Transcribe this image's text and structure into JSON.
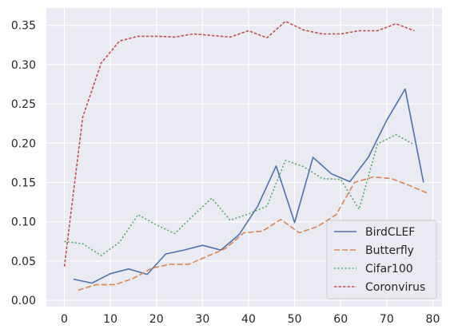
{
  "chart_data": {
    "type": "line",
    "title": "",
    "xlabel": "",
    "ylabel": "",
    "xlim": [
      -3.9,
      82.0
    ],
    "ylim": [
      -0.008,
      0.372
    ],
    "xticks": [
      0,
      10,
      20,
      30,
      40,
      50,
      60,
      70,
      80
    ],
    "xtick_labels": [
      "0",
      "10",
      "20",
      "30",
      "40",
      "50",
      "60",
      "70",
      "80"
    ],
    "yticks": [
      0.0,
      0.05,
      0.1,
      0.15,
      0.2,
      0.25,
      0.3,
      0.35
    ],
    "ytick_labels": [
      "0.00",
      "0.05",
      "0.10",
      "0.15",
      "0.20",
      "0.25",
      "0.30",
      "0.35"
    ],
    "grid": true,
    "background_color": "#eaeaf2",
    "legend_position": "lower right",
    "series": [
      {
        "name": "BirdCLEF",
        "color": "#4c72b0",
        "dash": "solid",
        "x": [
          2,
          6,
          10,
          14,
          18,
          22,
          26,
          30,
          34,
          38,
          42,
          46,
          50,
          54,
          58,
          62,
          66,
          70,
          74,
          78
        ],
        "y": [
          0.027,
          0.022,
          0.034,
          0.04,
          0.033,
          0.059,
          0.064,
          0.07,
          0.064,
          0.084,
          0.12,
          0.171,
          0.099,
          0.182,
          0.161,
          0.151,
          0.182,
          0.229,
          0.269,
          0.15
        ]
      },
      {
        "name": "Butterfly",
        "color": "#dd8452",
        "dash": "dashed",
        "x": [
          3,
          7,
          11,
          15,
          19,
          23,
          27,
          31,
          35,
          39,
          43,
          47,
          51,
          55,
          59,
          63,
          67,
          71,
          75,
          79
        ],
        "y": [
          0.013,
          0.02,
          0.02,
          0.028,
          0.041,
          0.046,
          0.046,
          0.056,
          0.066,
          0.086,
          0.088,
          0.103,
          0.086,
          0.094,
          0.109,
          0.15,
          0.157,
          0.155,
          0.146,
          0.136
        ]
      },
      {
        "name": "Cifar100",
        "color": "#55a868",
        "dash": "dotted",
        "x": [
          0,
          4,
          8,
          12,
          16,
          20,
          24,
          28,
          32,
          36,
          40,
          44,
          48,
          52,
          56,
          60,
          64,
          68,
          72,
          76
        ],
        "y": [
          0.075,
          0.072,
          0.057,
          0.074,
          0.109,
          0.096,
          0.085,
          0.108,
          0.13,
          0.102,
          0.11,
          0.12,
          0.178,
          0.17,
          0.155,
          0.154,
          0.116,
          0.199,
          0.211,
          0.198
        ]
      },
      {
        "name": "Coronvirus",
        "color": "#c44e52",
        "dash": "dashdot",
        "x": [
          0,
          4,
          8,
          12,
          16,
          20,
          24,
          28,
          32,
          36,
          40,
          44,
          48,
          52,
          56,
          60,
          64,
          68,
          72,
          76
        ],
        "y": [
          0.043,
          0.233,
          0.302,
          0.33,
          0.336,
          0.336,
          0.335,
          0.339,
          0.337,
          0.335,
          0.343,
          0.334,
          0.355,
          0.344,
          0.339,
          0.339,
          0.343,
          0.343,
          0.352,
          0.343
        ]
      }
    ]
  }
}
